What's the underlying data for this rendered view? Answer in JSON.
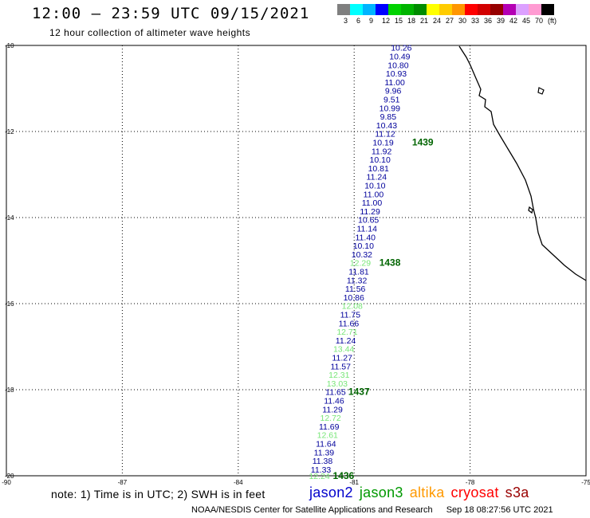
{
  "title": "12:00 – 23:59 UTC 09/15/2021",
  "subtitle": "12 hour collection of altimeter wave heights",
  "legend": {
    "labels": [
      "3",
      "6",
      "9",
      "12",
      "15",
      "18",
      "21",
      "24",
      "27",
      "30",
      "33",
      "36",
      "39",
      "42",
      "45",
      "70"
    ],
    "unit": "(ft)",
    "colors": [
      "#7f7f7f",
      "#00ffff",
      "#00b4ff",
      "#0000ff",
      "#00d200",
      "#00b400",
      "#008c00",
      "#ffff00",
      "#ffcc00",
      "#ff9600",
      "#ff0000",
      "#d20000",
      "#960000",
      "#b400b4",
      "#dca0ff",
      "#ff9bd2",
      "#000000"
    ]
  },
  "map": {
    "lat_range": [
      -20,
      -10
    ],
    "lon_range": [
      -90,
      -75
    ],
    "y_ticks": [
      "-10",
      "-12",
      "-14",
      "-16",
      "-18",
      "-20"
    ],
    "x_ticks": [
      "-90",
      "-87",
      "-84",
      "-81",
      "-78",
      "-75"
    ],
    "grid": "dotted",
    "coastline_color": "#000000"
  },
  "track": {
    "color_default": "#00009b",
    "color_high": "#78e678",
    "points": [
      {
        "lat": -10.05,
        "lon": -79.78,
        "v": "10.26"
      },
      {
        "lat": -10.25,
        "lon": -79.82,
        "v": "10.49"
      },
      {
        "lat": -10.45,
        "lon": -79.86,
        "v": "10.80"
      },
      {
        "lat": -10.65,
        "lon": -79.91,
        "v": "10.93"
      },
      {
        "lat": -10.85,
        "lon": -79.95,
        "v": "11.00"
      },
      {
        "lat": -11.05,
        "lon": -79.99,
        "v": "9.96"
      },
      {
        "lat": -11.25,
        "lon": -80.03,
        "v": "9.51"
      },
      {
        "lat": -11.45,
        "lon": -80.08,
        "v": "10.99"
      },
      {
        "lat": -11.65,
        "lon": -80.12,
        "v": "9.85"
      },
      {
        "lat": -11.85,
        "lon": -80.16,
        "v": "10.43"
      },
      {
        "lat": -12.05,
        "lon": -80.2,
        "v": "11.12"
      },
      {
        "lat": -12.25,
        "lon": -80.25,
        "v": "10.19"
      },
      {
        "lat": -12.45,
        "lon": -80.29,
        "v": "11.92"
      },
      {
        "lat": -12.65,
        "lon": -80.33,
        "v": "10.10"
      },
      {
        "lat": -12.85,
        "lon": -80.37,
        "v": "10.81"
      },
      {
        "lat": -13.05,
        "lon": -80.42,
        "v": "11.24"
      },
      {
        "lat": -13.25,
        "lon": -80.46,
        "v": "10.10"
      },
      {
        "lat": -13.45,
        "lon": -80.5,
        "v": "11.00"
      },
      {
        "lat": -13.65,
        "lon": -80.54,
        "v": "11.00"
      },
      {
        "lat": -13.85,
        "lon": -80.59,
        "v": "11.29"
      },
      {
        "lat": -14.05,
        "lon": -80.63,
        "v": "10.65"
      },
      {
        "lat": -14.25,
        "lon": -80.67,
        "v": "11.14"
      },
      {
        "lat": -14.45,
        "lon": -80.71,
        "v": "11.40"
      },
      {
        "lat": -14.65,
        "lon": -80.76,
        "v": "10.10"
      },
      {
        "lat": -14.85,
        "lon": -80.8,
        "v": "10.32"
      },
      {
        "lat": -15.05,
        "lon": -80.84,
        "v": "12.29"
      },
      {
        "lat": -15.25,
        "lon": -80.88,
        "v": "11.81"
      },
      {
        "lat": -15.45,
        "lon": -80.93,
        "v": "11.32"
      },
      {
        "lat": -15.65,
        "lon": -80.97,
        "v": "11.56"
      },
      {
        "lat": -15.85,
        "lon": -81.01,
        "v": "10.86"
      },
      {
        "lat": -16.05,
        "lon": -81.05,
        "v": "12.08"
      },
      {
        "lat": -16.25,
        "lon": -81.1,
        "v": "11.75"
      },
      {
        "lat": -16.45,
        "lon": -81.14,
        "v": "11.66"
      },
      {
        "lat": -16.65,
        "lon": -81.18,
        "v": "12.71"
      },
      {
        "lat": -16.85,
        "lon": -81.22,
        "v": "11.24"
      },
      {
        "lat": -17.05,
        "lon": -81.27,
        "v": "13.44"
      },
      {
        "lat": -17.25,
        "lon": -81.31,
        "v": "11.27"
      },
      {
        "lat": -17.45,
        "lon": -81.35,
        "v": "11.57"
      },
      {
        "lat": -17.65,
        "lon": -81.39,
        "v": "12.31"
      },
      {
        "lat": -17.85,
        "lon": -81.44,
        "v": "13.03"
      },
      {
        "lat": -18.05,
        "lon": -81.48,
        "v": "11.65"
      },
      {
        "lat": -18.25,
        "lon": -81.52,
        "v": "11.46"
      },
      {
        "lat": -18.45,
        "lon": -81.56,
        "v": "11.29"
      },
      {
        "lat": -18.65,
        "lon": -81.61,
        "v": "12.72"
      },
      {
        "lat": -18.85,
        "lon": -81.65,
        "v": "11.69"
      },
      {
        "lat": -19.05,
        "lon": -81.69,
        "v": "12.61"
      },
      {
        "lat": -19.25,
        "lon": -81.73,
        "v": "11.64"
      },
      {
        "lat": -19.45,
        "lon": -81.78,
        "v": "11.39"
      },
      {
        "lat": -19.65,
        "lon": -81.82,
        "v": "11.38"
      },
      {
        "lat": -19.85,
        "lon": -81.86,
        "v": "11.33"
      },
      {
        "lat": -20.0,
        "lon": -81.9,
        "v": "12.24"
      }
    ],
    "high_threshold": 12,
    "times": [
      {
        "lat": -12.25,
        "lon": -79.5,
        "t": "1439"
      },
      {
        "lat": -15.05,
        "lon": -80.35,
        "t": "1438"
      },
      {
        "lat": -18.05,
        "lon": -81.15,
        "t": "1437"
      },
      {
        "lat": -20.0,
        "lon": -81.55,
        "t": "1436"
      }
    ],
    "time_color": "#006400"
  },
  "note": "note:  1) Time is in UTC;  2) SWH is in feet",
  "satellites": [
    {
      "name": "jason2",
      "color": "#0000cc"
    },
    {
      "name": "jason3",
      "color": "#009900"
    },
    {
      "name": "altika",
      "color": "#ff9900"
    },
    {
      "name": "cryosat",
      "color": "#ff0000"
    },
    {
      "name": "s3a",
      "color": "#990000"
    }
  ],
  "footer": {
    "org": "NOAA/NESDIS Center for Satellite Applications and Research",
    "stamp": "Sep 18 08:27:56 UTC 2021"
  }
}
